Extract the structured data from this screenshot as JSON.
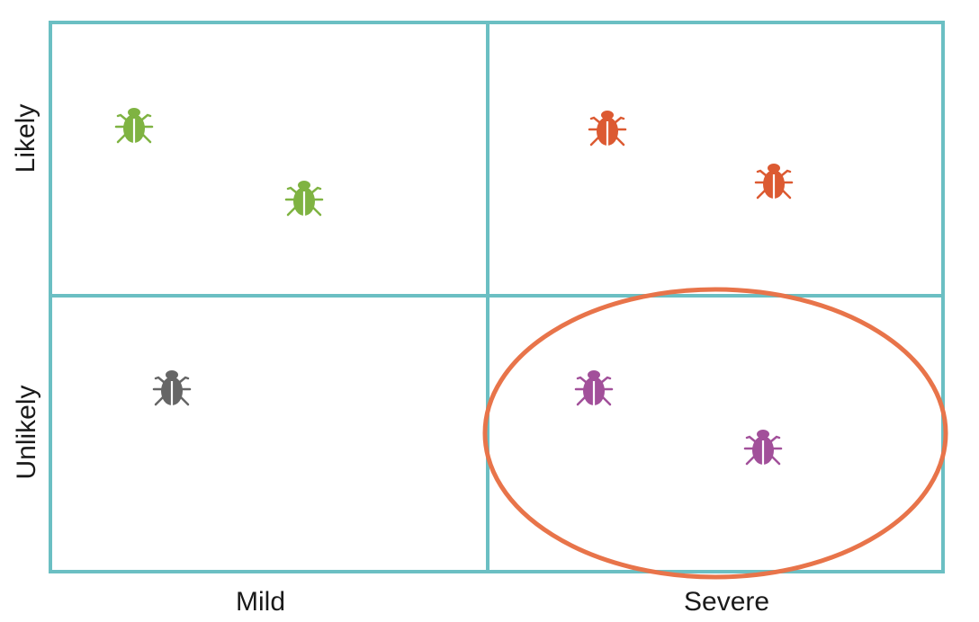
{
  "axes": {
    "x_labels": [
      "Mild",
      "Severe"
    ],
    "y_labels": [
      "Likely",
      "Unlikely"
    ]
  },
  "colors": {
    "grid": "#6bbfc3",
    "highlight": "#e8744a"
  },
  "bugs": [
    {
      "quadrant": "likely-mild",
      "color": "#7fb342",
      "icon": "bug-icon"
    },
    {
      "quadrant": "likely-mild",
      "color": "#7fb342",
      "icon": "bug-icon"
    },
    {
      "quadrant": "likely-severe",
      "color": "#dc5a32",
      "icon": "bug-icon"
    },
    {
      "quadrant": "likely-severe",
      "color": "#dc5a32",
      "icon": "bug-icon"
    },
    {
      "quadrant": "unlikely-mild",
      "color": "#666666",
      "icon": "bug-icon"
    },
    {
      "quadrant": "unlikely-severe",
      "color": "#a2509a",
      "icon": "bug-icon"
    },
    {
      "quadrant": "unlikely-severe",
      "color": "#a2509a",
      "icon": "bug-icon"
    }
  ],
  "highlight": {
    "quadrant": "unlikely-severe",
    "shape": "ellipse"
  }
}
